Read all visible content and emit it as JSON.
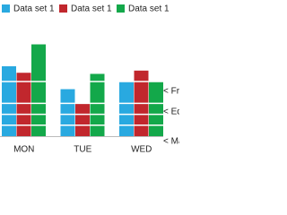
{
  "chart_data": {
    "type": "bar",
    "categories": [
      "MON",
      "TUE",
      "WED"
    ],
    "series": [
      {
        "name": "Data set 1",
        "color": "#29a9e0",
        "values": [
          64,
          43,
          50
        ]
      },
      {
        "name": "Data set 1",
        "color": "#c1272d",
        "values": [
          58,
          30,
          60
        ]
      },
      {
        "name": "Data set 1",
        "color": "#13a84a",
        "values": [
          84,
          57,
          50
        ]
      }
    ],
    "ylim": [
      0,
      100
    ],
    "yticks": [
      10,
      20,
      30,
      50
    ],
    "grid": true,
    "annotations": [
      "< Fre",
      "< Ed",
      "< Ma"
    ]
  }
}
